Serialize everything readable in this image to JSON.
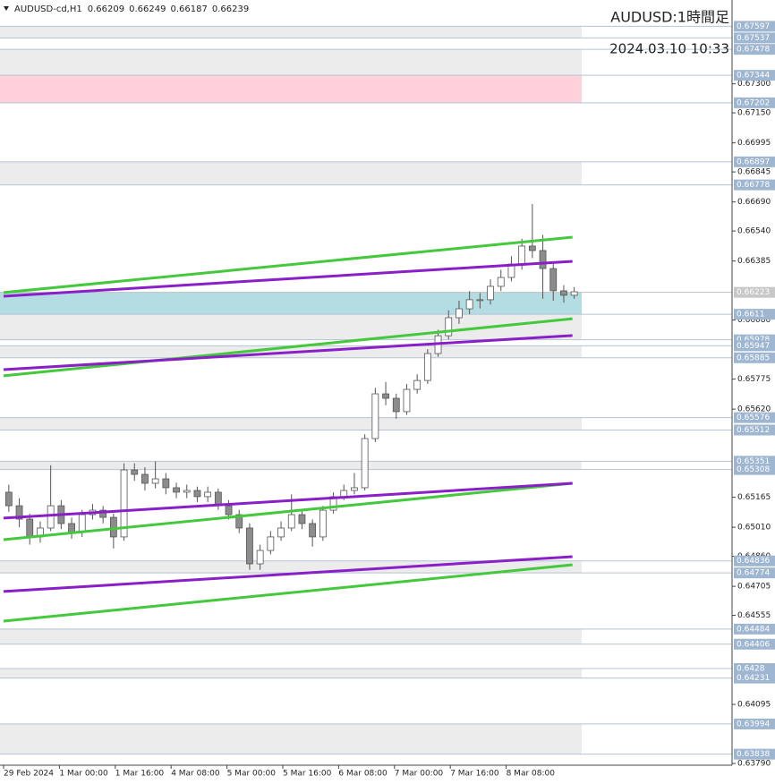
{
  "chart_data": {
    "type": "candlestick",
    "header": "AUDUSD-cd,H1",
    "header_ohlc": [
      0.66209,
      0.66249,
      0.66187,
      0.66239
    ],
    "title": "AUDUSD:1時間足",
    "subtitle": "2024.03.10 10:33",
    "ylim": [
      0.63781,
      0.67719
    ],
    "xlim": [
      0,
      209
    ],
    "yticks": [
      {
        "value": 0.673,
        "label": "0.67300"
      },
      {
        "value": 0.6715,
        "label": "0.67150"
      },
      0.66995,
      {
        "value": 0.66845,
        "label": "0.66845"
      },
      {
        "value": 0.6669,
        "label": "0.66690"
      },
      {
        "value": 0.6654,
        "label": "0.66540"
      },
      0.66385,
      {
        "value": 0.6608,
        "label": "0.66080"
      },
      0.65775,
      {
        "value": 0.6562,
        "label": "0.65620"
      },
      0.65165,
      {
        "value": 0.6501,
        "label": "0.65010"
      },
      {
        "value": 0.6486,
        "label": "0.64860"
      },
      0.64705,
      0.64555,
      0.64095,
      {
        "value": 0.6379,
        "label": "0.63790"
      }
    ],
    "xticks": [
      {
        "value": 0,
        "label": "29 Feb 2024"
      },
      {
        "value": 16,
        "label": "1 Mar 00:00"
      },
      {
        "value": 32,
        "label": "1 Mar 16:00"
      },
      {
        "value": 48,
        "label": "4 Mar 08:00"
      },
      {
        "value": 64,
        "label": "5 Mar 00:00"
      },
      {
        "value": 80,
        "label": "5 Mar 16:00"
      },
      {
        "value": 96,
        "label": "6 Mar 08:00"
      },
      {
        "value": 112,
        "label": "7 Mar 00:00"
      },
      {
        "value": 128,
        "label": "7 Mar 16:00"
      },
      {
        "value": 144,
        "label": "8 Mar 08:00"
      }
    ],
    "levels": [
      0.67597,
      0.67537,
      0.67478,
      0.67344,
      0.67202,
      0.66897,
      0.66778,
      0.6611,
      0.65978,
      0.65947,
      0.65885,
      0.65576,
      0.65512,
      0.65351,
      0.65308,
      0.64836,
      0.64774,
      0.64484,
      0.64406,
      0.6428,
      0.64231,
      0.63994,
      0.63838
    ],
    "current_price": 0.66223,
    "zones": [
      {
        "from": 0.67537,
        "to": 0.67597,
        "color": "#ececec"
      },
      {
        "from": 0.67344,
        "to": 0.67478,
        "color": "#ececec"
      },
      {
        "from": 0.67202,
        "to": 0.67344,
        "color": "#ffd1da"
      },
      {
        "from": 0.66778,
        "to": 0.66897,
        "color": "#ececec"
      },
      {
        "from": 0.6611,
        "to": 0.66223,
        "color": "#b4dde3"
      },
      {
        "from": 0.65978,
        "to": 0.6611,
        "color": "#ececec"
      },
      {
        "from": 0.65885,
        "to": 0.65947,
        "color": "#ececec"
      },
      {
        "from": 0.65512,
        "to": 0.65576,
        "color": "#ececec"
      },
      {
        "from": 0.65308,
        "to": 0.65351,
        "color": "#ececec"
      },
      {
        "from": 0.64774,
        "to": 0.64836,
        "color": "#ececec"
      },
      {
        "from": 0.64406,
        "to": 0.64484,
        "color": "#ececec"
      },
      {
        "from": 0.64231,
        "to": 0.6428,
        "color": "#ececec"
      },
      {
        "from": 0.63838,
        "to": 0.63994,
        "color": "#ececec"
      }
    ],
    "trendlines": [
      {
        "color": "#44c83c",
        "x": [
          0,
          163
        ],
        "values": [
          0.66222,
          0.66508
        ]
      },
      {
        "color": "#8a1fc8",
        "x": [
          0,
          163
        ],
        "values": [
          0.66203,
          0.66383
        ]
      },
      {
        "color": "#44c83c",
        "x": [
          0,
          163
        ],
        "values": [
          0.65792,
          0.66087
        ]
      },
      {
        "color": "#8a1fc8",
        "x": [
          0,
          163
        ],
        "values": [
          0.65824,
          0.66
        ]
      },
      {
        "color": "#44c83c",
        "x": [
          0,
          163
        ],
        "values": [
          0.64946,
          0.65237
        ]
      },
      {
        "color": "#8a1fc8",
        "x": [
          0,
          163
        ],
        "values": [
          0.65057,
          0.65237
        ]
      },
      {
        "color": "#44c83c",
        "x": [
          0,
          163
        ],
        "values": [
          0.64525,
          0.64816
        ]
      },
      {
        "color": "#8a1fc8",
        "x": [
          0,
          163
        ],
        "values": [
          0.64678,
          0.64858
        ]
      }
    ],
    "candles": {
      "open": [
        0.65191,
        0.65121,
        0.65052,
        0.6496,
        0.65006,
        0.65121,
        0.65029,
        0.64983,
        0.65075,
        0.65098,
        0.65061,
        0.6496,
        0.65306,
        0.65283,
        0.65237,
        0.6526,
        0.65214,
        0.65191,
        0.652,
        0.65168,
        0.65191,
        0.65121,
        0.65075,
        0.65006,
        0.64821,
        0.6489,
        0.6496,
        0.65006,
        0.65075,
        0.65029,
        0.6496,
        0.65098,
        0.65168,
        0.652,
        0.65214,
        0.65468,
        0.65699,
        0.65676,
        0.65607,
        0.65722,
        0.65768,
        0.65907,
        0.65999,
        0.66092,
        0.66138,
        0.66185,
        0.66185,
        0.66254,
        0.663,
        0.66369,
        0.66462,
        0.66439,
        0.66346,
        0.66231,
        0.66208
      ],
      "high": [
        0.6523,
        0.6516,
        0.6508,
        0.6504,
        0.6533,
        0.6515,
        0.6506,
        0.651,
        0.6513,
        0.6512,
        0.6508,
        0.6534,
        0.6534,
        0.6532,
        0.6535,
        0.6529,
        0.6524,
        0.6523,
        0.6522,
        0.6522,
        0.6521,
        0.6515,
        0.651,
        0.6503,
        0.6492,
        0.6499,
        0.6504,
        0.6518,
        0.651,
        0.6505,
        0.6512,
        0.6519,
        0.6523,
        0.6529,
        0.6549,
        0.6573,
        0.6576,
        0.657,
        0.6575,
        0.658,
        0.6593,
        0.6603,
        0.6613,
        0.6618,
        0.6623,
        0.6622,
        0.6629,
        0.6634,
        0.6641,
        0.665,
        0.66679,
        0.6652,
        0.6637,
        0.6626,
        0.6625
      ],
      "low": [
        0.6509,
        0.6501,
        0.6492,
        0.6493,
        0.6499,
        0.65,
        0.6495,
        0.6496,
        0.6505,
        0.6503,
        0.649,
        0.6494,
        0.6525,
        0.652,
        0.6521,
        0.6518,
        0.6516,
        0.6516,
        0.6514,
        0.6514,
        0.651,
        0.6505,
        0.6498,
        0.6479,
        0.6479,
        0.6487,
        0.6494,
        0.6499,
        0.65,
        0.6491,
        0.6494,
        0.6508,
        0.6515,
        0.6518,
        0.652,
        0.6545,
        0.6564,
        0.6557,
        0.6559,
        0.657,
        0.6575,
        0.6589,
        0.6598,
        0.6606,
        0.6611,
        0.6614,
        0.6616,
        0.6623,
        0.6628,
        0.6634,
        0.664,
        0.6619,
        0.6618,
        0.6617,
        0.6619
      ],
      "close": [
        0.65121,
        0.65052,
        0.6496,
        0.65006,
        0.65121,
        0.65029,
        0.64983,
        0.65075,
        0.65098,
        0.65061,
        0.6496,
        0.65306,
        0.65283,
        0.65237,
        0.6526,
        0.65214,
        0.65191,
        0.652,
        0.65168,
        0.65191,
        0.65121,
        0.65075,
        0.65006,
        0.64821,
        0.6489,
        0.6496,
        0.65006,
        0.65075,
        0.65029,
        0.6496,
        0.65098,
        0.65168,
        0.652,
        0.65214,
        0.65468,
        0.65699,
        0.65676,
        0.65607,
        0.65722,
        0.65768,
        0.65907,
        0.65999,
        0.66092,
        0.66138,
        0.66185,
        0.66185,
        0.66254,
        0.663,
        0.66369,
        0.66462,
        0.66439,
        0.66346,
        0.66231,
        0.66208,
        0.66226
      ]
    }
  }
}
